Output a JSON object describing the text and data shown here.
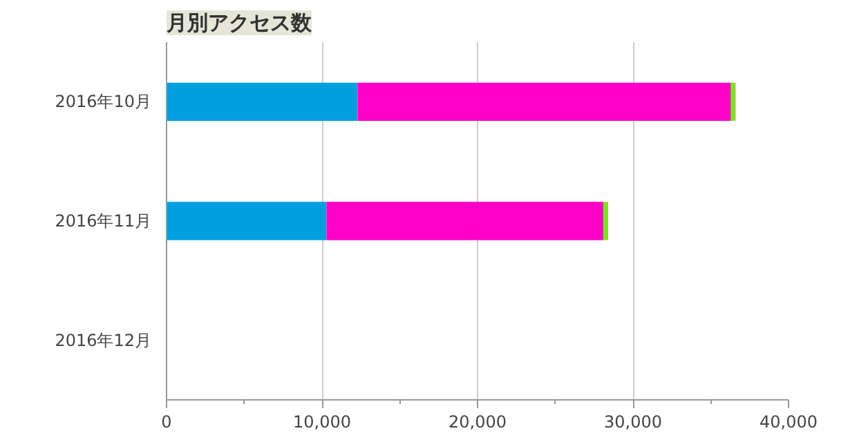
{
  "chart_data": {
    "type": "bar",
    "orientation": "horizontal",
    "stacked": true,
    "title": "月別アクセス数",
    "categories": [
      "2016年10月",
      "2016年11月",
      "2016年12月"
    ],
    "series": [
      {
        "color": "#00a0e0",
        "values": [
          12300,
          10300,
          null
        ]
      },
      {
        "color": "#ff00c8",
        "values": [
          24000,
          17800,
          null
        ]
      },
      {
        "color": "#80e020",
        "values": [
          300,
          300,
          null
        ]
      }
    ],
    "xlim": [
      0,
      40000
    ],
    "xticks": [
      0,
      {
        "value": 5000,
        "label": null
      },
      {
        "value": 10000,
        "label": "10,000"
      },
      {
        "value": 15000,
        "label": null
      },
      {
        "value": 20000,
        "label": "20,000"
      },
      {
        "value": 25000,
        "label": null
      },
      {
        "value": 30000,
        "label": "30,000"
      },
      {
        "value": 35000,
        "label": null
      },
      {
        "value": 40000,
        "label": "40,000"
      }
    ],
    "grid": "x"
  }
}
